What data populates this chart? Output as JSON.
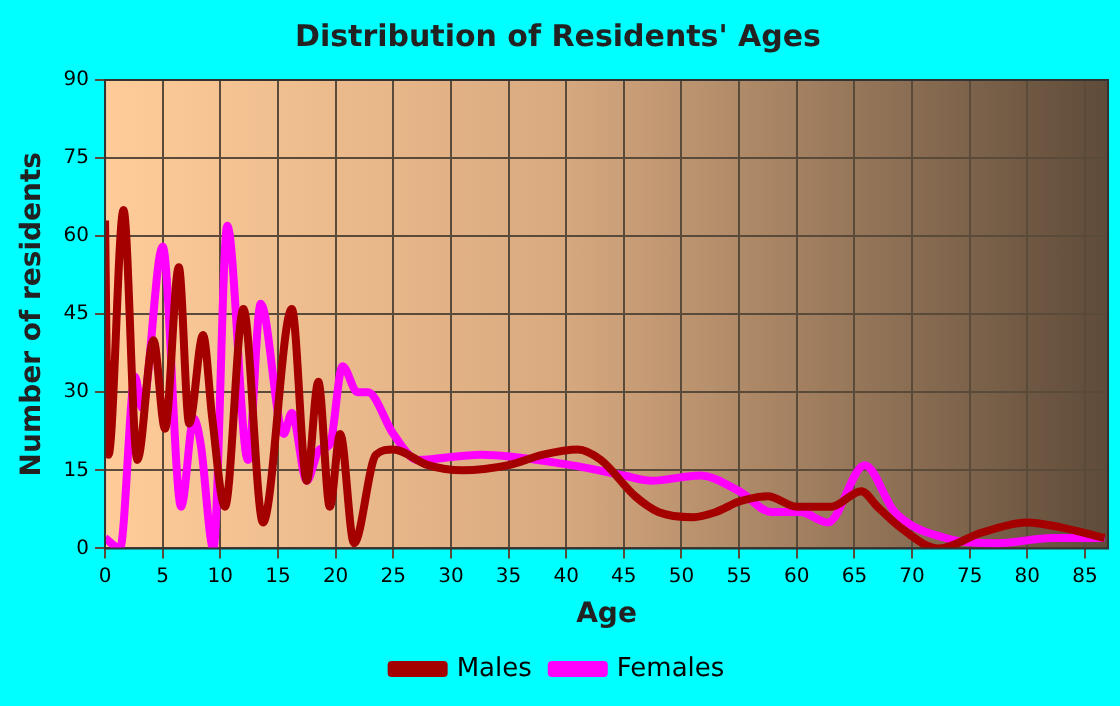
{
  "chart_data": {
    "type": "line",
    "title": "Distribution of Residents' Ages",
    "xlabel": "Age",
    "ylabel": "Number of residents",
    "xlim": [
      0,
      87
    ],
    "xticks": [
      0,
      5,
      10,
      15,
      20,
      25,
      30,
      35,
      40,
      45,
      50,
      55,
      60,
      65,
      70,
      75,
      80,
      85
    ],
    "ylim": [
      0,
      90
    ],
    "yticks": [
      0,
      15,
      30,
      45,
      60,
      75,
      90
    ],
    "grid": true,
    "legend": "bottom",
    "marker": "none",
    "line_style": "solid",
    "series": [
      {
        "name": "Males",
        "color": "#a50000",
        "x": [
          0,
          0.3,
          1.6,
          2.8,
          4.2,
          5.2,
          6.4,
          7.3,
          8.5,
          9.3,
          10.4,
          12,
          13.7,
          16.2,
          17.5,
          18.5,
          19.5,
          20.4,
          21.6,
          23.5,
          25,
          28,
          31,
          35,
          38,
          41,
          43,
          46,
          48,
          51,
          53,
          55,
          57.5,
          60,
          63,
          65.6,
          67,
          69,
          72.3,
          76,
          80,
          83,
          86.7
        ],
        "values": [
          63,
          18,
          65,
          17,
          40,
          23,
          54,
          24,
          41,
          25,
          8,
          46,
          5,
          46,
          13,
          32,
          8,
          22,
          1,
          18,
          19,
          16,
          15,
          16,
          18,
          19,
          17,
          10,
          7,
          6,
          7,
          9,
          10,
          8,
          8,
          11,
          8,
          4,
          0,
          3,
          5,
          4,
          2
        ]
      },
      {
        "name": "Females",
        "color": "#ff00ff",
        "x": [
          0,
          1.3,
          2.6,
          3.2,
          5,
          6.6,
          7.7,
          8.3,
          9.4,
          10.6,
          12.4,
          13.5,
          15.5,
          16.2,
          17.5,
          18.6,
          19.5,
          20.6,
          21.9,
          22.8,
          25,
          27.1,
          32.6,
          40.4,
          45,
          47.4,
          51.6,
          55,
          57.8,
          60.3,
          62.7,
          65.9,
          68.5,
          72.9,
          77.5,
          82.1,
          86.7
        ],
        "values": [
          2,
          0,
          33,
          27,
          58,
          8,
          25,
          20,
          0,
          62,
          17,
          47,
          22,
          26,
          13,
          19,
          20,
          35,
          30,
          30,
          22,
          17,
          18,
          16,
          14,
          13,
          14,
          11,
          7,
          7,
          5,
          16,
          7,
          2,
          1,
          2,
          2
        ]
      }
    ]
  }
}
